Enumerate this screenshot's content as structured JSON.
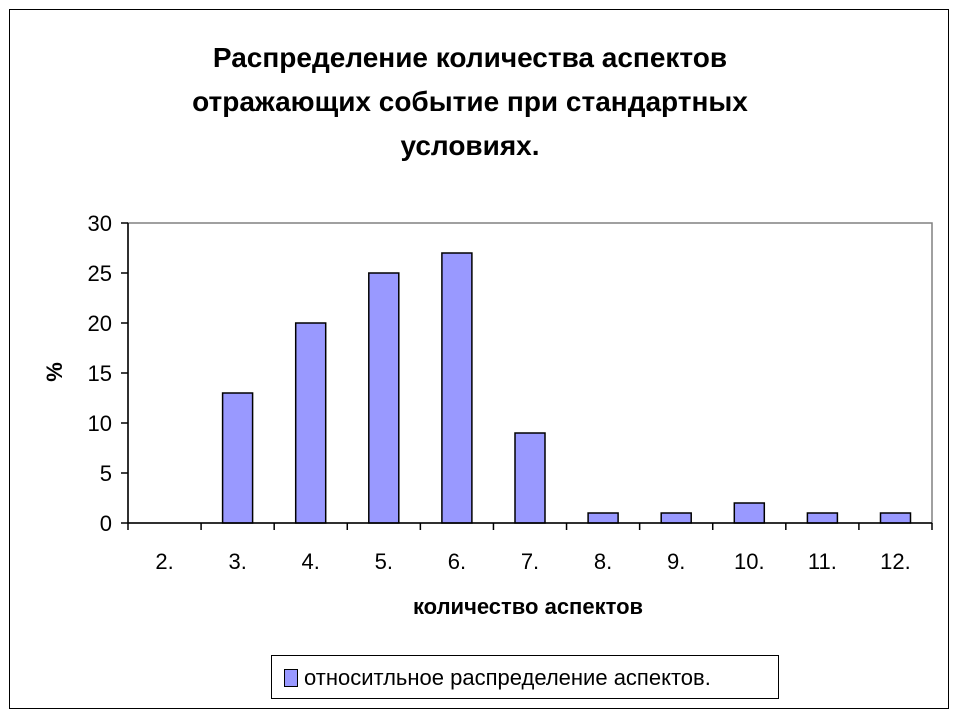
{
  "chart_data": {
    "type": "bar",
    "title_lines": [
      "Распределение количества  аспектов",
      "отражающих событие при стандартных",
      "условиях."
    ],
    "xlabel": "количество аспектов",
    "ylabel": "%",
    "categories": [
      "2.",
      "3.",
      "4.",
      "5.",
      "6.",
      "7.",
      "8.",
      "9.",
      "10.",
      "11.",
      "12."
    ],
    "series": [
      {
        "name": "относитльное распределение аспектов.",
        "values": [
          0,
          13,
          20,
          25,
          27,
          9,
          1,
          1,
          2,
          1,
          1
        ]
      }
    ],
    "ylim": [
      0,
      30
    ],
    "yticks": [
      "0",
      "5",
      "10",
      "15",
      "20",
      "25",
      "30"
    ],
    "grid": false,
    "legend_position": "bottom",
    "colors": {
      "bar": "#9999ff",
      "bar_border": "#000000",
      "axis": "#000000"
    }
  }
}
